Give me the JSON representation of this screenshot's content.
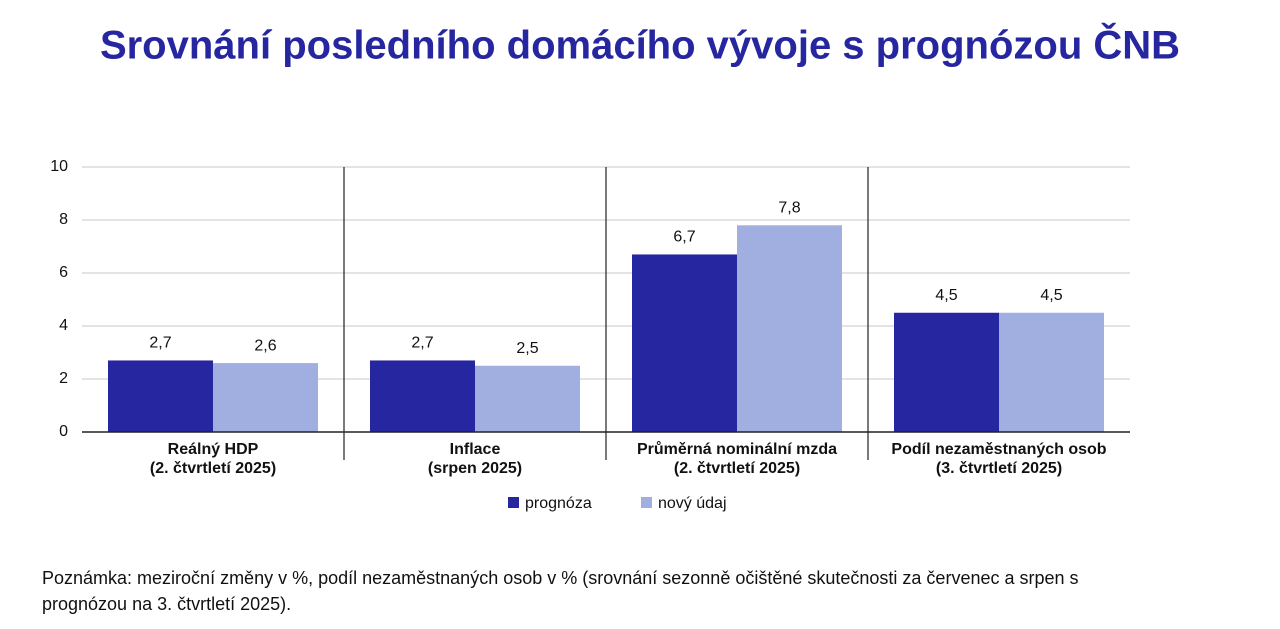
{
  "chart_data": {
    "type": "bar",
    "title": "Srovnání posledního domácího vývoje s prognózou ČNB",
    "categories": [
      [
        "Reálný HDP",
        "(2. čtvrtletí 2025)"
      ],
      [
        "Inflace",
        "(srpen 2025)"
      ],
      [
        "Průměrná nominální mzda",
        "(2. čtvrtletí 2025)"
      ],
      [
        "Podíl nezaměstnaných osob",
        "(3. čtvrtletí 2025)"
      ]
    ],
    "series": [
      {
        "name": "prognóza",
        "color": "#2626a0",
        "values": [
          2.7,
          2.7,
          6.7,
          4.5
        ],
        "value_labels": [
          "2,7",
          "2,7",
          "6,7",
          "4,5"
        ]
      },
      {
        "name": "nový údaj",
        "color": "#a0aee0",
        "values": [
          2.6,
          2.5,
          7.8,
          4.5
        ],
        "value_labels": [
          "2,6",
          "2,5",
          "7,8",
          "4,5"
        ]
      }
    ],
    "ylim": [
      0,
      10
    ],
    "yticks": [
      0,
      2,
      4,
      6,
      8,
      10
    ],
    "grid": true,
    "legend": "bottom"
  },
  "note": "Poznámka: meziroční změny v %, podíl nezaměstnaných osob v % (srovnání sezonně očištěné skutečnosti za červenec a srpen s prognózou na 3. čtvrtletí 2025)."
}
